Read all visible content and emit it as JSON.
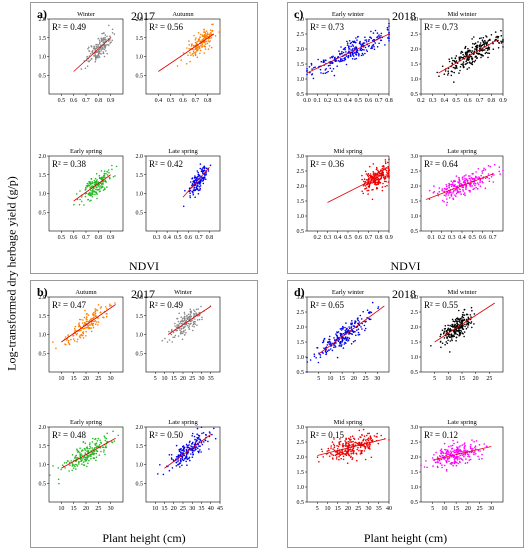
{
  "y_axis_label": "Log-transformed dry herbage yield (g/p)",
  "panels": [
    {
      "label": "a)",
      "year": "2017",
      "xlabel": "NDVI"
    },
    {
      "label": "b)",
      "year": "2017",
      "xlabel": "Plant height (cm)"
    },
    {
      "label": "c)",
      "year": "2018",
      "xlabel": "NDVI"
    },
    {
      "label": "d)",
      "year": "2018",
      "xlabel": "Plant height (cm)"
    }
  ],
  "chart_data": [
    {
      "type": "scatter",
      "panel": "a",
      "title": "Winter",
      "r2": "R² = 0.49",
      "color": "#888888",
      "xlim": [
        0.4,
        1.0
      ],
      "ylim": [
        0.0,
        2.0
      ],
      "xticks": [
        0.5,
        0.6,
        0.7,
        0.8,
        0.9
      ],
      "yticks": [
        0.5,
        1.0,
        1.5,
        2.0
      ],
      "fit": [
        [
          0.6,
          0.6
        ],
        [
          0.9,
          1.5
        ]
      ],
      "xrange": [
        0.7,
        0.9
      ],
      "center": [
        0.8,
        1.2
      ],
      "n": 160
    },
    {
      "type": "scatter",
      "panel": "a",
      "title": "Autumn",
      "r2": "R² = 0.56",
      "color": "#ff8000",
      "xlim": [
        0.3,
        0.9
      ],
      "ylim": [
        0.0,
        2.0
      ],
      "xticks": [
        0.4,
        0.5,
        0.6,
        0.7,
        0.8
      ],
      "yticks": [
        0.5,
        1.0,
        1.5,
        2.0
      ],
      "fit": [
        [
          0.4,
          0.6
        ],
        [
          0.85,
          1.6
        ]
      ],
      "xrange": [
        0.6,
        0.85
      ],
      "center": [
        0.75,
        1.25
      ],
      "n": 160
    },
    {
      "type": "scatter",
      "panel": "a",
      "title": "Early spring",
      "r2": "R² = 0.38",
      "color": "#22bb22",
      "xlim": [
        0.4,
        1.0
      ],
      "ylim": [
        0.0,
        2.0
      ],
      "xticks": [
        0.5,
        0.6,
        0.7,
        0.8,
        0.9
      ],
      "yticks": [
        0.5,
        1.0,
        1.5,
        2.0
      ],
      "fit": [
        [
          0.6,
          0.8
        ],
        [
          0.9,
          1.5
        ]
      ],
      "xrange": [
        0.65,
        0.9
      ],
      "center": [
        0.78,
        1.2
      ],
      "n": 180
    },
    {
      "type": "scatter",
      "panel": "a",
      "title": "Late spring",
      "r2": "R² = 0.42",
      "color": "#0000ee",
      "xlim": [
        0.2,
        0.9
      ],
      "ylim": [
        0.0,
        2.0
      ],
      "xticks": [
        0.3,
        0.4,
        0.5,
        0.6,
        0.7,
        0.8
      ],
      "yticks": [
        0.5,
        1.0,
        1.5,
        2.0
      ],
      "fit": [
        [
          0.55,
          0.9
        ],
        [
          0.8,
          1.7
        ]
      ],
      "xrange": [
        0.6,
        0.78
      ],
      "center": [
        0.7,
        1.35
      ],
      "n": 150
    },
    {
      "type": "scatter",
      "panel": "b",
      "title": "Autumn",
      "r2": "R² = 0.47",
      "color": "#ff8000",
      "xlim": [
        5,
        35
      ],
      "ylim": [
        0.0,
        2.0
      ],
      "xticks": [
        10,
        15,
        20,
        25,
        30
      ],
      "yticks": [
        0.5,
        1.0,
        1.5,
        2.0
      ],
      "fit": [
        [
          10,
          0.8
        ],
        [
          32,
          1.8
        ]
      ],
      "xrange": [
        12,
        30
      ],
      "center": [
        20,
        1.3
      ],
      "n": 160
    },
    {
      "type": "scatter",
      "panel": "b",
      "title": "Winter",
      "r2": "R² = 0.49",
      "color": "#888888",
      "xlim": [
        0,
        40
      ],
      "ylim": [
        0.0,
        2.0
      ],
      "xticks": [
        5,
        10,
        15,
        20,
        25,
        30,
        35
      ],
      "yticks": [
        0.5,
        1.0,
        1.5,
        2.0
      ],
      "fit": [
        [
          12,
          1.0
        ],
        [
          35,
          1.75
        ]
      ],
      "xrange": [
        14,
        32
      ],
      "center": [
        22,
        1.35
      ],
      "n": 160
    },
    {
      "type": "scatter",
      "panel": "b",
      "title": "Early spring",
      "r2": "R² = 0.48",
      "color": "#22bb22",
      "xlim": [
        5,
        35
      ],
      "ylim": [
        0.0,
        2.0
      ],
      "xticks": [
        10,
        15,
        20,
        25,
        30
      ],
      "yticks": [
        0.5,
        1.0,
        1.5,
        2.0
      ],
      "fit": [
        [
          10,
          0.9
        ],
        [
          32,
          1.7
        ]
      ],
      "xrange": [
        12,
        32
      ],
      "center": [
        21,
        1.35
      ],
      "n": 200
    },
    {
      "type": "scatter",
      "panel": "b",
      "title": "Late spring",
      "r2": "R² = 0.50",
      "color": "#0000ee",
      "xlim": [
        5,
        45
      ],
      "ylim": [
        0.0,
        2.0
      ],
      "xticks": [
        10,
        15,
        20,
        25,
        30,
        35,
        40,
        45
      ],
      "yticks": [
        0.5,
        1.0,
        1.5,
        2.0
      ],
      "fit": [
        [
          15,
          0.9
        ],
        [
          40,
          1.8
        ]
      ],
      "xrange": [
        18,
        40
      ],
      "center": [
        28,
        1.45
      ],
      "n": 200
    },
    {
      "type": "scatter",
      "panel": "c",
      "title": "Early winter",
      "r2": "R² = 0.73",
      "color": "#0000ee",
      "xlim": [
        0.0,
        0.8
      ],
      "ylim": [
        0.5,
        3.0
      ],
      "xticks": [
        0.0,
        0.1,
        0.2,
        0.3,
        0.4,
        0.5,
        0.6,
        0.7,
        0.8
      ],
      "yticks": [
        0.5,
        1.0,
        1.5,
        2.0,
        2.5,
        3.0
      ],
      "fit": [
        [
          0.0,
          1.2
        ],
        [
          0.8,
          2.5
        ]
      ],
      "xrange": [
        0.05,
        0.78
      ],
      "center": [
        0.45,
        1.9
      ],
      "n": 260
    },
    {
      "type": "scatter",
      "panel": "c",
      "title": "Mid winter",
      "r2": "R² = 0.73",
      "color": "#000000",
      "xlim": [
        0.2,
        0.9
      ],
      "ylim": [
        0.5,
        3.0
      ],
      "xticks": [
        0.2,
        0.3,
        0.4,
        0.5,
        0.6,
        0.7,
        0.8,
        0.9
      ],
      "yticks": [
        0.5,
        1.0,
        1.5,
        2.0,
        2.5,
        3.0
      ],
      "fit": [
        [
          0.35,
          1.2
        ],
        [
          0.85,
          2.3
        ]
      ],
      "xrange": [
        0.35,
        0.85
      ],
      "center": [
        0.65,
        1.8
      ],
      "n": 260
    },
    {
      "type": "scatter",
      "panel": "c",
      "title": "Mid spring",
      "r2": "R² = 0.36",
      "color": "#ee0000",
      "xlim": [
        0.1,
        0.9
      ],
      "ylim": [
        0.5,
        3.0
      ],
      "xticks": [
        0.2,
        0.3,
        0.4,
        0.5,
        0.6,
        0.7,
        0.8,
        0.9
      ],
      "yticks": [
        0.5,
        1.0,
        1.5,
        2.0,
        2.5,
        3.0
      ],
      "fit": [
        [
          0.3,
          1.45
        ],
        [
          0.85,
          2.4
        ]
      ],
      "xrange": [
        0.6,
        0.88
      ],
      "center": [
        0.78,
        2.25
      ],
      "n": 220
    },
    {
      "type": "scatter",
      "panel": "c",
      "title": "Late spring",
      "r2": "R² = 0.64",
      "color": "#ff00ff",
      "xlim": [
        0.0,
        0.8
      ],
      "ylim": [
        0.5,
        3.0
      ],
      "xticks": [
        0.1,
        0.2,
        0.3,
        0.4,
        0.5,
        0.6,
        0.7
      ],
      "yticks": [
        0.5,
        1.0,
        1.5,
        2.0,
        2.5,
        3.0
      ],
      "fit": [
        [
          0.05,
          1.55
        ],
        [
          0.7,
          2.4
        ]
      ],
      "xrange": [
        0.1,
        0.68
      ],
      "center": [
        0.4,
        2.0
      ],
      "n": 240
    },
    {
      "type": "scatter",
      "panel": "d",
      "title": "Early winter",
      "r2": "R² = 0.65",
      "color": "#0000ee",
      "xlim": [
        0,
        35
      ],
      "ylim": [
        0.5,
        3.0
      ],
      "xticks": [
        5,
        10,
        15,
        20,
        25,
        30
      ],
      "yticks": [
        0.5,
        1.0,
        1.5,
        2.0,
        2.5,
        3.0
      ],
      "fit": [
        [
          5,
          1.1
        ],
        [
          33,
          2.7
        ]
      ],
      "xrange": [
        6,
        30
      ],
      "center": [
        16,
        1.8
      ],
      "n": 240
    },
    {
      "type": "scatter",
      "panel": "d",
      "title": "Mid winter",
      "r2": "R² = 0.55",
      "color": "#000000",
      "xlim": [
        0,
        30
      ],
      "ylim": [
        0.5,
        3.0
      ],
      "xticks": [
        5,
        10,
        15,
        20,
        25
      ],
      "yticks": [
        0.5,
        1.0,
        1.5,
        2.0,
        2.5,
        3.0
      ],
      "fit": [
        [
          5,
          1.5
        ],
        [
          27,
          2.8
        ]
      ],
      "xrange": [
        8,
        20
      ],
      "center": [
        13,
        2.0
      ],
      "n": 240
    },
    {
      "type": "scatter",
      "panel": "d",
      "title": "Mid spring",
      "r2": "R² = 0.15",
      "color": "#ee0000",
      "xlim": [
        0,
        40
      ],
      "ylim": [
        0.5,
        3.0
      ],
      "xticks": [
        5,
        10,
        15,
        20,
        25,
        30,
        35,
        40
      ],
      "yticks": [
        0.5,
        1.0,
        1.5,
        2.0,
        2.5,
        3.0
      ],
      "fit": [
        [
          5,
          2.05
        ],
        [
          38,
          2.6
        ]
      ],
      "xrange": [
        10,
        35
      ],
      "center": [
        22,
        2.3
      ],
      "n": 260
    },
    {
      "type": "scatter",
      "panel": "d",
      "title": "Late spring",
      "r2": "R² = 0.12",
      "color": "#ff00ff",
      "xlim": [
        0,
        35
      ],
      "ylim": [
        0.5,
        3.0
      ],
      "xticks": [
        5,
        10,
        15,
        20,
        25,
        30
      ],
      "yticks": [
        0.5,
        1.0,
        1.5,
        2.0,
        2.5,
        3.0
      ],
      "fit": [
        [
          5,
          1.9
        ],
        [
          30,
          2.35
        ]
      ],
      "xrange": [
        6,
        28
      ],
      "center": [
        15,
        2.05
      ],
      "n": 240
    }
  ]
}
